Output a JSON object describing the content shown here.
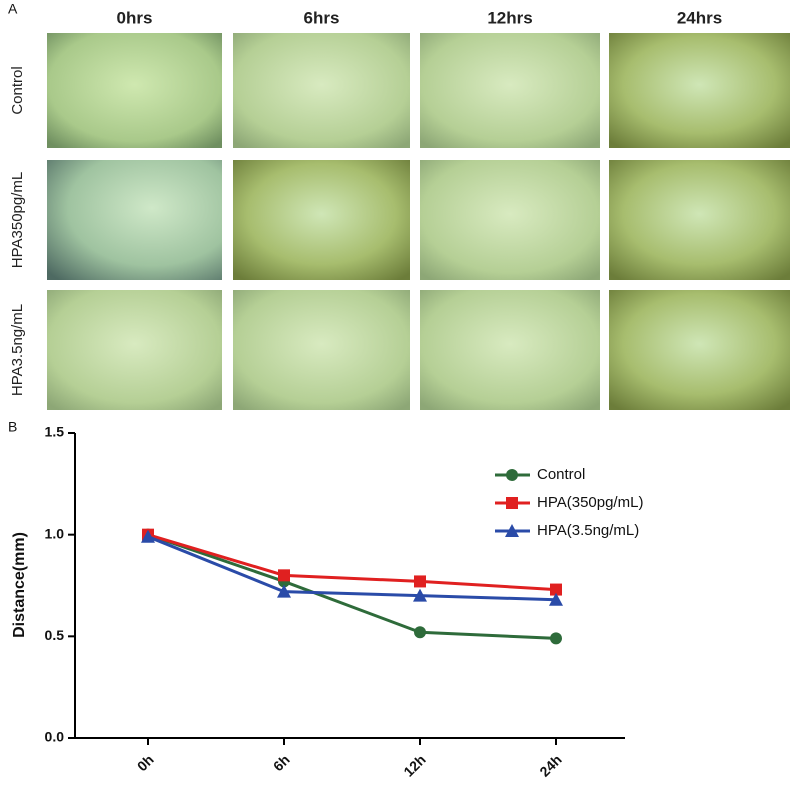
{
  "panel_a": {
    "label": "A",
    "columns": [
      "0hrs",
      "6hrs",
      "12hrs",
      "24hrs"
    ],
    "rows": [
      "Control",
      "HPA350pg/mL",
      "HPA3.5ng/mL"
    ]
  },
  "chart_data": {
    "type": "line",
    "panel_label": "B",
    "y_label": "Distance(mm)",
    "categories": [
      "0h",
      "6h",
      "12h",
      "24h"
    ],
    "ylim": [
      0,
      1.5
    ],
    "yticks": [
      {
        "value": 0,
        "label": "0.0"
      },
      0.5,
      {
        "value": 1,
        "label": "1.0"
      },
      1.5
    ],
    "series": [
      {
        "name": "Control",
        "color": "#2e6b3a",
        "marker": "circle",
        "values": [
          1.0,
          0.77,
          0.52,
          0.49
        ]
      },
      {
        "name": "HPA(350pg/mL)",
        "color": "#e02020",
        "marker": "square",
        "values": [
          1.0,
          0.8,
          0.77,
          0.73
        ]
      },
      {
        "name": "HPA(3.5ng/mL)",
        "color": "#2a4ba8",
        "marker": "triangle",
        "values": [
          0.99,
          0.72,
          0.7,
          0.68
        ]
      }
    ]
  }
}
